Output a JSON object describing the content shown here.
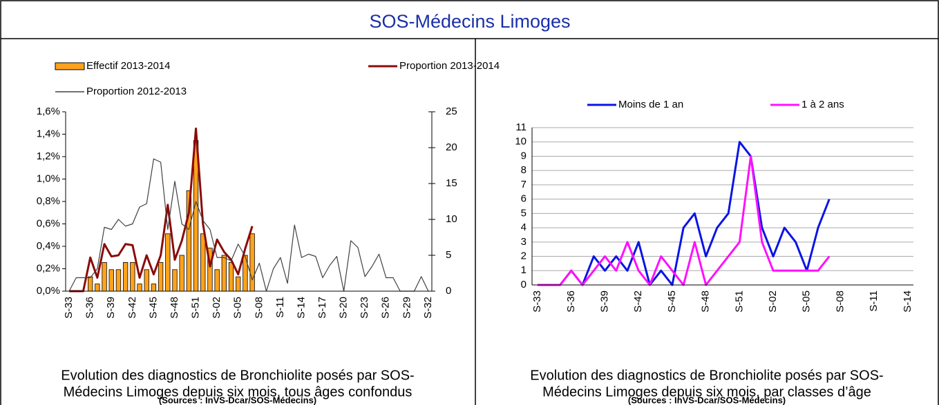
{
  "header": {
    "title": "SOS-Médecins Limoges"
  },
  "chart_data": [
    {
      "type": "bar",
      "categories": [
        "S-33",
        null,
        null,
        "S-36",
        null,
        null,
        "S-39",
        null,
        null,
        "S-42",
        null,
        null,
        "S-45",
        null,
        null,
        "S-48",
        null,
        null,
        "S-51",
        null,
        null,
        "S-02",
        null,
        null,
        "S-05",
        null,
        null,
        "S-08",
        null,
        null,
        "S-11",
        null,
        null,
        "S-14",
        null,
        null,
        "S-17",
        null,
        null,
        "S-20",
        null,
        null,
        "S-23",
        null,
        null,
        "S-26",
        null,
        null,
        "S-29",
        null,
        null,
        "S-32"
      ],
      "series": [
        {
          "name": "Effectif 2013-2014",
          "type": "bar",
          "axis": "y2",
          "color": "#ffa21c",
          "values": [
            null,
            null,
            null,
            2,
            1,
            4,
            3,
            3,
            4,
            4,
            1,
            3,
            1,
            4,
            8,
            3,
            5,
            14,
            21,
            8,
            6,
            3,
            5,
            4,
            2,
            5,
            8,
            null,
            null,
            null,
            null,
            null,
            null,
            null,
            null,
            null,
            null,
            null,
            null,
            null,
            null,
            null,
            null,
            null,
            null,
            null,
            null,
            null,
            null,
            null,
            null,
            null
          ]
        },
        {
          "name": "Proportion 2013-2014",
          "type": "line",
          "color": "#8b0a0a",
          "values": [
            0,
            0,
            0,
            0.3,
            0.12,
            0.42,
            0.31,
            0.32,
            0.42,
            0.41,
            0.12,
            0.32,
            0.15,
            0.32,
            0.77,
            0.28,
            0.45,
            0.7,
            1.45,
            0.6,
            0.22,
            0.46,
            0.35,
            0.28,
            0.15,
            0.38,
            0.58,
            null,
            null,
            null,
            null,
            null,
            null,
            null,
            null,
            null,
            null,
            null,
            null,
            null,
            null,
            null,
            null,
            null,
            null,
            null,
            null,
            null,
            null,
            null,
            null,
            null
          ]
        },
        {
          "name": "Proportion 2012-2013",
          "type": "line",
          "color": "#404040",
          "values": [
            0,
            0.12,
            0.12,
            0.12,
            0.2,
            0.57,
            0.55,
            0.64,
            0.58,
            0.6,
            0.75,
            0.78,
            1.18,
            1.15,
            0.55,
            0.98,
            0.6,
            0.55,
            0.8,
            0.63,
            0.55,
            0.3,
            0.3,
            0.27,
            0.42,
            0.31,
            0.1,
            0.25,
            0,
            0.2,
            0.3,
            0.07,
            0.59,
            0.3,
            0.33,
            0.31,
            0.12,
            0.23,
            0.31,
            0,
            0.45,
            0.39,
            0.13,
            0.22,
            0.33,
            0.12,
            0.12,
            0,
            0,
            0,
            0.13,
            0
          ]
        }
      ],
      "ylim": [
        0,
        1.6
      ],
      "yticks": [
        {
          "value": 0,
          "label": "0,0%"
        },
        {
          "value": 0.2,
          "label": "0,2%"
        },
        {
          "value": 0.4,
          "label": "0,4%"
        },
        {
          "value": 0.6,
          "label": "0,6%"
        },
        {
          "value": 0.8,
          "label": "0,8%"
        },
        {
          "value": 1.0,
          "label": "1,0%"
        },
        {
          "value": 1.2,
          "label": "1,2%"
        },
        {
          "value": 1.4,
          "label": "1,4%"
        },
        {
          "value": 1.6,
          "label": "1,6%"
        }
      ],
      "y2lim": [
        0,
        25
      ],
      "y2ticks": [
        0,
        5,
        10,
        15,
        20,
        25
      ],
      "grid": false,
      "caption": [
        "Evolution des diagnostics de Bronchiolite posés par SOS-",
        "Médecins Limoges depuis six mois, tous âges confondus"
      ],
      "source": "(Sources : InVS-Dcar/SOS-Médecins)"
    },
    {
      "type": "line",
      "categories": [
        "S-33",
        null,
        null,
        "S-36",
        null,
        null,
        "S-39",
        null,
        null,
        "S-42",
        null,
        null,
        "S-45",
        null,
        null,
        "S-48",
        null,
        null,
        "S-51",
        null,
        null,
        "S-02",
        null,
        null,
        "S-05",
        null,
        null,
        "S-08",
        null,
        null,
        "S-11",
        null,
        null,
        "S-14"
      ],
      "series": [
        {
          "name": "Moins de 1 an",
          "color": "#0a14e6",
          "values": [
            0,
            0,
            0,
            1,
            0,
            2,
            1,
            2,
            1,
            3,
            0,
            1,
            0,
            4,
            5,
            2,
            4,
            5,
            10,
            9,
            4,
            2,
            4,
            3,
            1,
            4,
            6,
            null,
            null,
            null,
            null,
            null,
            null,
            null
          ]
        },
        {
          "name": "1 à 2 ans",
          "color": "#ff10ff",
          "values": [
            0,
            0,
            0,
            1,
            0,
            1,
            2,
            1,
            3,
            1,
            0,
            2,
            1,
            0,
            3,
            0,
            1,
            2,
            3,
            9,
            3,
            1,
            1,
            1,
            1,
            1,
            2,
            null,
            null,
            null,
            null,
            null,
            null,
            null
          ]
        }
      ],
      "ylim": [
        0,
        11
      ],
      "yticks": [
        0,
        1,
        2,
        3,
        4,
        5,
        6,
        7,
        8,
        9,
        10,
        11
      ],
      "grid": true,
      "caption": [
        "Evolution des diagnostics de Bronchiolite posés par SOS-",
        "Médecins Limoges depuis six mois, par classes d’âge"
      ],
      "source": "(Sources : InVS-Dcar/SOS-Médecins)"
    }
  ]
}
